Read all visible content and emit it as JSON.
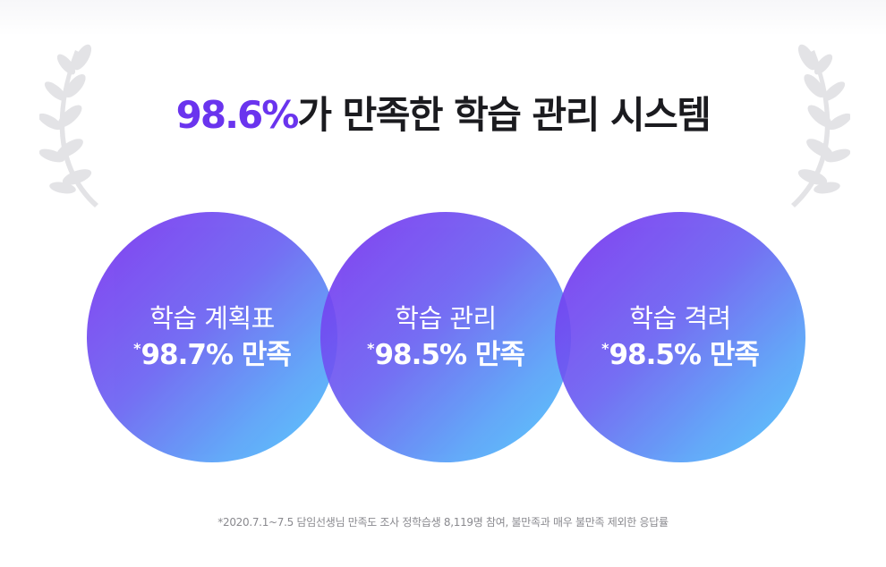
{
  "headline": {
    "highlight": "98.6%",
    "rest": "가 만족한 학습 관리 시스템"
  },
  "stats": [
    {
      "label": "학습 계획표",
      "asterisk": "*",
      "value": "98.7% 만족"
    },
    {
      "label": "학습 관리",
      "asterisk": "*",
      "value": "98.5% 만족"
    },
    {
      "label": "학습 격려",
      "asterisk": "*",
      "value": "98.5% 만족"
    }
  ],
  "footnote": "*2020.7.1~7.5 담임선생님 만족도 조사 정학습생 8,119명 참여, 불만족과 매우 불만족 제외한 응답률",
  "icons": {
    "left": "laurel-left-icon",
    "right": "laurel-right-icon"
  },
  "colors": {
    "accent": "#6a34ee",
    "gradient_start": "#7b2fef",
    "gradient_end": "#4ec6fc",
    "laurel": "#e3e3e6"
  }
}
